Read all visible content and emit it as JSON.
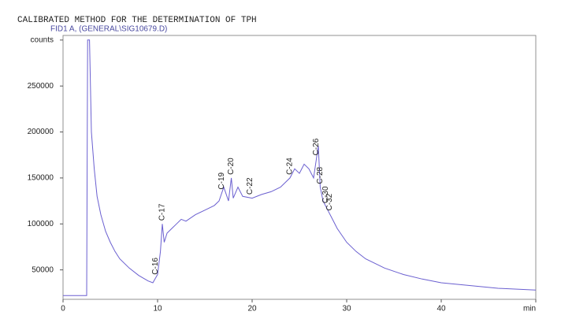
{
  "chart_data": {
    "type": "line",
    "title": "CALIBRATED METHOD FOR THE DETERMINATION OF TPH",
    "subtitle": "FID1 A, (GENERAL\\SIG10679.D)",
    "color": "#6a5fd0",
    "x": [
      0,
      2.5,
      2.6,
      2.8,
      3.0,
      3.3,
      3.6,
      4,
      4.5,
      5,
      5.5,
      6,
      7,
      8,
      9,
      9.5,
      10,
      10.3,
      10.5,
      10.7,
      11,
      11.5,
      12,
      12.5,
      13,
      14,
      15,
      16,
      16.5,
      17,
      17.5,
      17.8,
      18,
      18.5,
      19,
      20,
      21,
      22,
      23,
      24,
      24.5,
      25,
      25.5,
      26,
      26.5,
      27,
      27.2,
      27.5,
      28,
      28.5,
      29,
      30,
      31,
      32,
      34,
      36,
      38,
      40,
      43,
      46,
      50
    ],
    "values": [
      22000,
      22000,
      300000,
      300000,
      200000,
      160000,
      130000,
      110000,
      92000,
      80000,
      70000,
      62000,
      52000,
      44000,
      38000,
      36000,
      45000,
      70000,
      100000,
      80000,
      90000,
      95000,
      100000,
      105000,
      103000,
      110000,
      115000,
      120000,
      125000,
      140000,
      125000,
      150000,
      128000,
      140000,
      130000,
      128000,
      132000,
      135000,
      140000,
      150000,
      160000,
      155000,
      165000,
      160000,
      150000,
      185000,
      140000,
      125000,
      115000,
      105000,
      95000,
      80000,
      70000,
      62000,
      52000,
      45000,
      40000,
      36000,
      33000,
      30000,
      28000
    ],
    "peak_labels": [
      {
        "text": "C-16",
        "x": 9.8
      },
      {
        "text": "C-17",
        "x": 10.5
      },
      {
        "text": "C-19",
        "x": 16.8
      },
      {
        "text": "C-20",
        "x": 17.8
      },
      {
        "text": "C-22",
        "x": 19.8
      },
      {
        "text": "C-24",
        "x": 24.0
      },
      {
        "text": "C-26",
        "x": 26.8
      },
      {
        "text": "C-28",
        "x": 27.2
      },
      {
        "text": "C-30",
        "x": 27.8
      },
      {
        "text": "C-32",
        "x": 28.2
      }
    ],
    "xlim": [
      0,
      50
    ],
    "xticks": [
      0,
      10,
      20,
      30,
      40,
      {
        "value": 50,
        "label": "min"
      }
    ],
    "ylim": [
      18000,
      305000
    ],
    "yticks": [
      50000,
      100000,
      150000,
      200000,
      250000,
      {
        "value": 300000,
        "label": "counts"
      }
    ]
  }
}
